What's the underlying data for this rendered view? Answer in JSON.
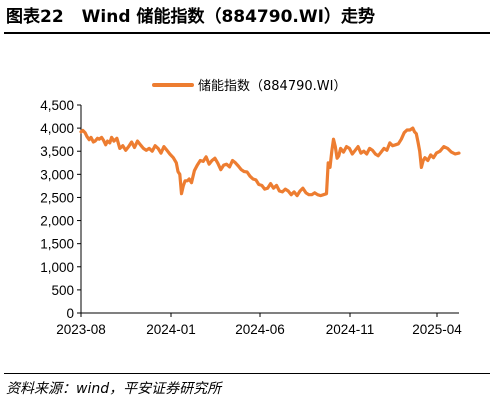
{
  "figure": {
    "number": "图表22",
    "title": "Wind 储能指数（884790.WI）走势"
  },
  "source": "资料来源：wind，平安证券研究所",
  "colors": {
    "series": "#ED7D31",
    "axis": "#000000"
  },
  "chart_data": {
    "type": "line",
    "title": "",
    "xlabel": "",
    "ylabel": "",
    "ylim": [
      0,
      4500
    ],
    "yticks": [
      "0",
      "500",
      "1,000",
      "1,500",
      "2,000",
      "2,500",
      "3,000",
      "3,500",
      "4,000",
      "4,500"
    ],
    "xticks": [
      "2023-08",
      "2024-01",
      "2024-06",
      "2024-11",
      "2025-04"
    ],
    "legend_position": "top",
    "grid": false,
    "series": [
      {
        "name": "储能指数（884790.WI）",
        "color": "#ED7D31",
        "x": [
          "2023-08-01",
          "2023-08-04",
          "2023-08-08",
          "2023-08-11",
          "2023-08-15",
          "2023-08-18",
          "2023-08-22",
          "2023-08-25",
          "2023-08-29",
          "2023-09-01",
          "2023-09-05",
          "2023-09-08",
          "2023-09-12",
          "2023-09-15",
          "2023-09-19",
          "2023-09-22",
          "2023-09-26",
          "2023-10-01",
          "2023-10-06",
          "2023-10-11",
          "2023-10-16",
          "2023-10-21",
          "2023-10-26",
          "2023-10-31",
          "2023-11-05",
          "2023-11-10",
          "2023-11-15",
          "2023-11-20",
          "2023-11-25",
          "2023-11-30",
          "2023-12-05",
          "2023-12-10",
          "2023-12-15",
          "2023-12-20",
          "2023-12-25",
          "2023-12-30",
          "2024-01-05",
          "2024-01-10",
          "2024-01-13",
          "2024-01-16",
          "2024-01-19",
          "2024-01-22",
          "2024-01-25",
          "2024-01-29",
          "2024-02-01",
          "2024-02-05",
          "2024-02-10",
          "2024-02-15",
          "2024-02-20",
          "2024-02-25",
          "2024-03-01",
          "2024-03-06",
          "2024-03-11",
          "2024-03-16",
          "2024-03-21",
          "2024-03-26",
          "2024-03-31",
          "2024-04-05",
          "2024-04-10",
          "2024-04-15",
          "2024-04-20",
          "2024-04-25",
          "2024-04-30",
          "2024-05-05",
          "2024-05-10",
          "2024-05-15",
          "2024-05-20",
          "2024-05-25",
          "2024-05-30",
          "2024-06-04",
          "2024-06-09",
          "2024-06-14",
          "2024-06-19",
          "2024-06-24",
          "2024-06-29",
          "2024-07-04",
          "2024-07-09",
          "2024-07-14",
          "2024-07-19",
          "2024-07-24",
          "2024-07-29",
          "2024-08-03",
          "2024-08-08",
          "2024-08-13",
          "2024-08-18",
          "2024-08-23",
          "2024-08-28",
          "2024-09-02",
          "2024-09-07",
          "2024-09-12",
          "2024-09-17",
          "2024-09-22",
          "2024-09-25",
          "2024-09-28",
          "2024-10-01",
          "2024-10-04",
          "2024-10-07",
          "2024-10-10",
          "2024-10-13",
          "2024-10-16",
          "2024-10-21",
          "2024-10-26",
          "2024-10-31",
          "2024-11-05",
          "2024-11-10",
          "2024-11-15",
          "2024-11-20",
          "2024-11-25",
          "2024-11-30",
          "2024-12-05",
          "2024-12-10",
          "2024-12-15",
          "2024-12-20",
          "2024-12-25",
          "2024-12-30",
          "2025-01-04",
          "2025-01-09",
          "2025-01-14",
          "2025-01-19",
          "2025-01-24",
          "2025-01-29",
          "2025-02-03",
          "2025-02-08",
          "2025-02-13",
          "2025-02-18",
          "2025-02-21",
          "2025-02-24",
          "2025-02-27",
          "2025-03-02",
          "2025-03-05",
          "2025-03-08",
          "2025-03-11",
          "2025-03-16",
          "2025-03-21",
          "2025-03-26",
          "2025-03-31",
          "2025-04-05",
          "2025-04-10",
          "2025-04-15",
          "2025-04-20",
          "2025-04-25",
          "2025-04-30"
        ],
        "values": [
          3920,
          3950,
          3900,
          3820,
          3750,
          3800,
          3700,
          3720,
          3780,
          3760,
          3800,
          3740,
          3640,
          3720,
          3680,
          3800,
          3720,
          3780,
          3560,
          3620,
          3520,
          3600,
          3700,
          3580,
          3720,
          3640,
          3560,
          3520,
          3560,
          3500,
          3620,
          3560,
          3460,
          3600,
          3520,
          3440,
          3360,
          3250,
          3060,
          3000,
          2580,
          2750,
          2860,
          2860,
          2900,
          2820,
          3080,
          3200,
          3300,
          3280,
          3380,
          3220,
          3300,
          3350,
          3240,
          3100,
          3200,
          3220,
          3160,
          3300,
          3250,
          3180,
          3100,
          3060,
          3050,
          2960,
          2900,
          2880,
          2780,
          2760,
          2680,
          2700,
          2800,
          2700,
          2760,
          2640,
          2620,
          2680,
          2640,
          2560,
          2620,
          2540,
          2640,
          2700,
          2600,
          2560,
          2560,
          2600,
          2560,
          2540,
          2560,
          2580,
          3250,
          3150,
          3500,
          3760,
          3600,
          3350,
          3400,
          3560,
          3480,
          3600,
          3560,
          3440,
          3520,
          3600,
          3460,
          3500,
          3440,
          3560,
          3520,
          3440,
          3400,
          3480,
          3560,
          3520,
          3680,
          3620,
          3640,
          3660,
          3760,
          3900,
          3960,
          3960,
          4000,
          3920,
          3880,
          3700,
          3500,
          3150,
          3300,
          3360,
          3300,
          3420,
          3360,
          3460,
          3500,
          3600,
          3560,
          3480,
          3440,
          3460
        ]
      }
    ]
  }
}
